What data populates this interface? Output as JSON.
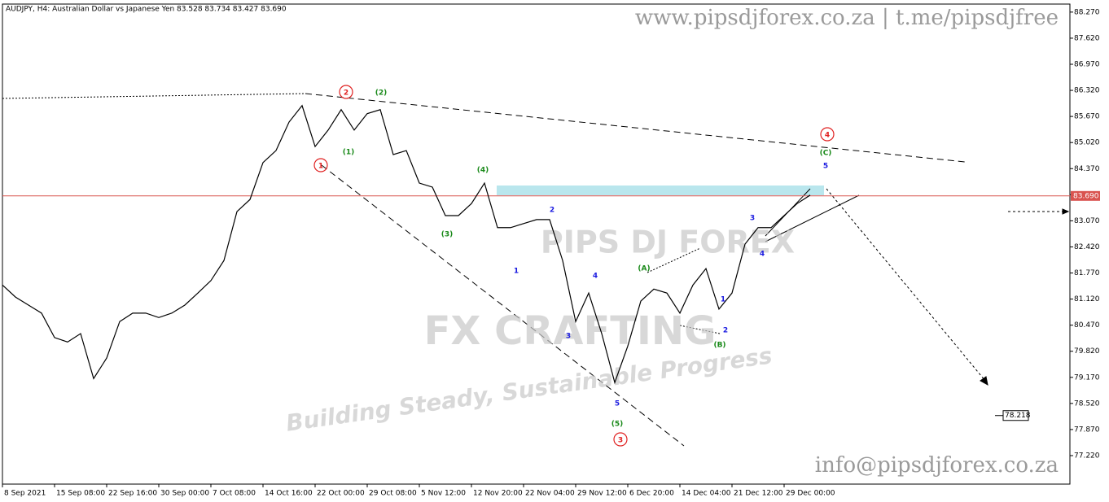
{
  "chart_data": {
    "type": "line",
    "title": "AUDJPY, H4:  Australian Dollar vs Japanese Yen  83.528 83.734 83.427 83.690",
    "watermark_top": "www.pipsdjforex.co.za | t.me/pipsdjfree",
    "watermark_bottom": "info@pipsdjforex.co.za",
    "logo_texts": [
      "PIPS DJ FOREX",
      "FX CRAFTING",
      "Building Steady, Sustainable Progress"
    ],
    "categories": [
      "8 Sep 2021",
      null,
      null,
      null,
      "15 Sep 08:00",
      null,
      null,
      null,
      "22 Sep 16:00",
      null,
      null,
      null,
      "30 Sep 00:00",
      null,
      null,
      null,
      "7 Oct 08:00",
      null,
      null,
      null,
      "14 Oct 16:00",
      null,
      null,
      null,
      "22 Oct 00:00",
      null,
      null,
      null,
      "29 Oct 08:00",
      null,
      null,
      null,
      "5 Nov 12:00",
      null,
      null,
      null,
      "12 Nov 20:00",
      null,
      null,
      null,
      "22 Nov 04:00",
      null,
      null,
      null,
      "29 Nov 12:00",
      null,
      null,
      null,
      "6 Dec 20:00",
      null,
      null,
      null,
      "14 Dec 04:00",
      null,
      null,
      null,
      "21 Dec 12:00",
      null,
      null,
      null,
      "29 Dec 00:00",
      null,
      null
    ],
    "values": [
      81.47,
      81.17,
      80.97,
      80.77,
      80.16,
      80.05,
      80.26,
      79.14,
      79.65,
      80.56,
      80.77,
      80.77,
      80.66,
      80.77,
      80.97,
      81.27,
      81.58,
      82.08,
      83.3,
      83.6,
      84.52,
      84.82,
      85.53,
      85.94,
      84.92,
      85.33,
      85.84,
      85.33,
      85.74,
      85.84,
      84.72,
      84.82,
      84.01,
      83.91,
      83.2,
      83.2,
      83.5,
      84.01,
      82.9,
      82.9,
      83.0,
      83.1,
      83.1,
      82.08,
      80.56,
      81.27,
      80.26,
      79.04,
      79.95,
      81.07,
      81.37,
      81.27,
      80.77,
      81.47,
      81.88,
      80.87,
      81.27,
      82.49,
      82.9,
      82.9,
      83.2,
      83.5,
      83.71
    ],
    "color": "#000000",
    "ylim": [
      76.51,
      88.47
    ],
    "yticks": [
      {
        "value": 88.27,
        "label": "88.270"
      },
      {
        "value": 87.62,
        "label": "87.620"
      },
      {
        "value": 86.97,
        "label": "86.970"
      },
      {
        "value": 86.32,
        "label": "86.320"
      },
      {
        "value": 85.67,
        "label": "85.670"
      },
      {
        "value": 85.02,
        "label": "85.020"
      },
      {
        "value": 84.37,
        "label": "84.370"
      },
      {
        "value": 83.72,
        "label": "83.720"
      },
      {
        "value": 83.07,
        "label": "83.070"
      },
      {
        "value": 82.42,
        "label": "82.420"
      },
      {
        "value": 81.77,
        "label": "81.770"
      },
      {
        "value": 81.12,
        "label": "81.120"
      },
      {
        "value": 80.47,
        "label": "80.470"
      },
      {
        "value": 79.82,
        "label": "79.820"
      },
      {
        "value": 79.17,
        "label": "79.170"
      },
      {
        "value": 78.52,
        "label": "78.520"
      },
      {
        "value": 77.87,
        "label": "77.870"
      },
      {
        "value": 77.22,
        "label": "77.220"
      }
    ],
    "current_price": {
      "value": 83.69,
      "label": "83.690",
      "color": "#d9534f"
    },
    "target": {
      "value": 78.218,
      "label": "78.218"
    },
    "waves": [
      {
        "label": "2",
        "color": "#e02020",
        "circled": true
      },
      {
        "label": "1",
        "color": "#e02020",
        "circled": true
      },
      {
        "label": "3",
        "color": "#e02020",
        "circled": true
      },
      {
        "label": "4",
        "color": "#e02020",
        "circled": true
      },
      {
        "label": "(2)",
        "color": "#1a8a1a",
        "circled": false
      },
      {
        "label": "(1)",
        "color": "#1a8a1a",
        "circled": false
      },
      {
        "label": "(4)",
        "color": "#1a8a1a",
        "circled": false
      },
      {
        "label": "(3)",
        "color": "#1a8a1a",
        "circled": false
      },
      {
        "label": "(5)",
        "color": "#1a8a1a",
        "circled": false
      },
      {
        "label": "(A)",
        "color": "#1a8a1a",
        "circled": false
      },
      {
        "label": "(B)",
        "color": "#1a8a1a",
        "circled": false
      },
      {
        "label": "(C)",
        "color": "#1a8a1a",
        "circled": false
      },
      {
        "label": "1",
        "color": "#1a1ae0",
        "circled": false
      },
      {
        "label": "2",
        "color": "#1a1ae0",
        "circled": false
      },
      {
        "label": "3",
        "color": "#1a1ae0",
        "circled": false
      },
      {
        "label": "4",
        "color": "#1a1ae0",
        "circled": false
      },
      {
        "label": "5",
        "color": "#1a1ae0",
        "circled": false
      },
      {
        "label": "1",
        "color": "#1a1ae0",
        "circled": false
      },
      {
        "label": "2",
        "color": "#1a1ae0",
        "circled": false
      },
      {
        "label": "3",
        "color": "#1a1ae0",
        "circled": false
      },
      {
        "label": "4",
        "color": "#1a1ae0",
        "circled": false
      },
      {
        "label": "5",
        "color": "#1a1ae0",
        "circled": false
      }
    ]
  }
}
